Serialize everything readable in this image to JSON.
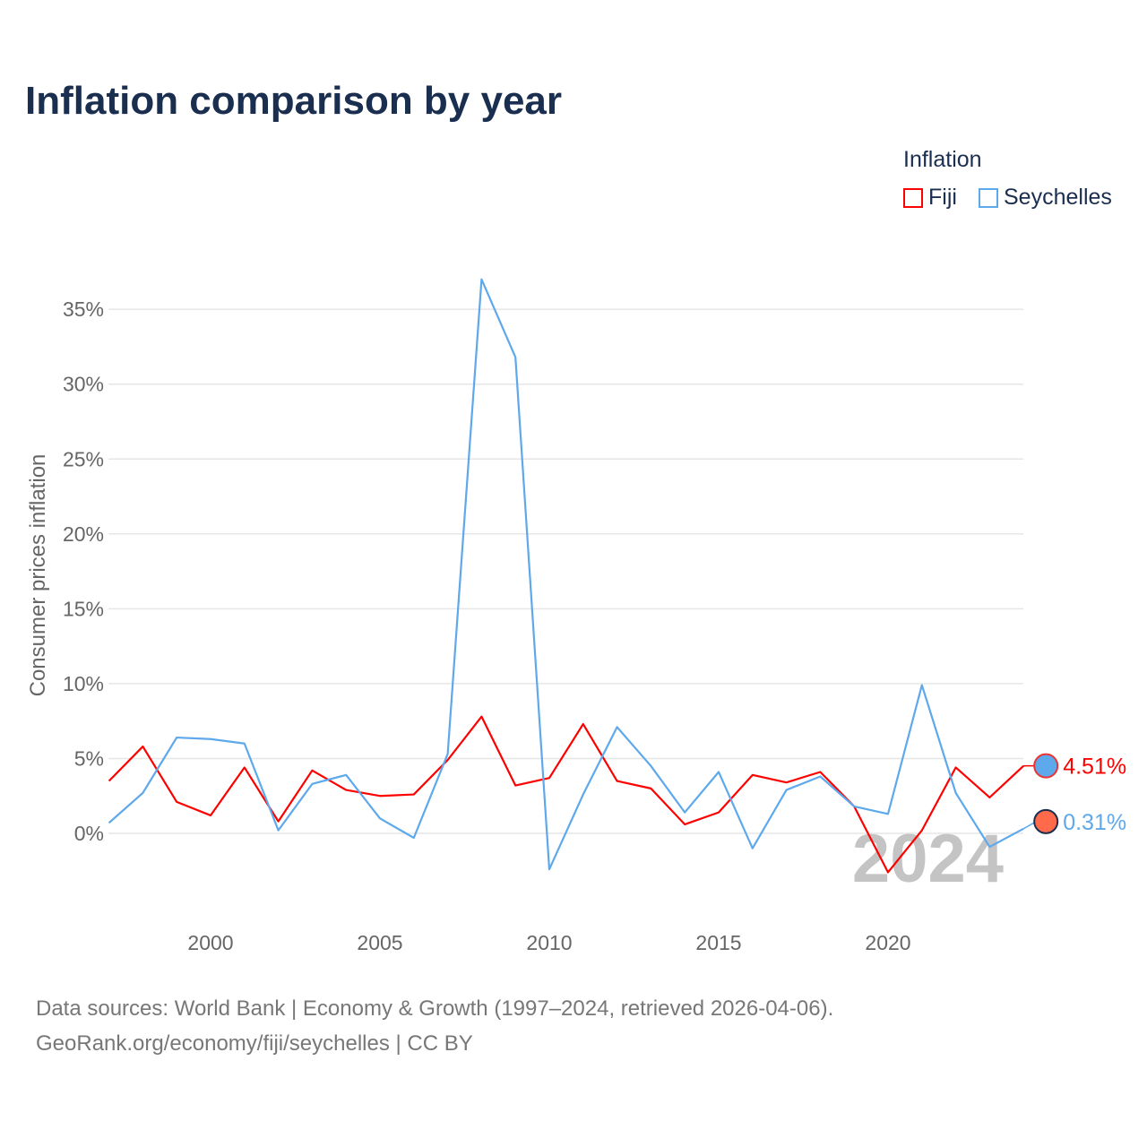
{
  "chart_data": {
    "type": "line",
    "title": "Inflation comparison by year",
    "ylabel": "Consumer prices inflation",
    "xlabel": "",
    "legend_title": "Inflation",
    "legend_position": "top-right",
    "x": [
      1997,
      1998,
      1999,
      2000,
      2001,
      2002,
      2003,
      2004,
      2005,
      2006,
      2007,
      2008,
      2009,
      2010,
      2011,
      2012,
      2013,
      2014,
      2015,
      2016,
      2017,
      2018,
      2019,
      2020,
      2021,
      2022,
      2023,
      2024
    ],
    "xlim": [
      1997,
      2024
    ],
    "ylim": [
      -4,
      38
    ],
    "xticks": [
      2000,
      2005,
      2010,
      2015,
      2020
    ],
    "xtick_labels": [
      "2000",
      "2005",
      "2010",
      "2015",
      "2020"
    ],
    "yticks": [
      0,
      5,
      10,
      15,
      20,
      25,
      30,
      35
    ],
    "ytick_labels": [
      "0%",
      "5%",
      "10%",
      "15%",
      "20%",
      "25%",
      "30%",
      "35%"
    ],
    "grid": true,
    "series": [
      {
        "name": "Fiji",
        "color": "#ff0000",
        "end_label": "4.51%",
        "values": [
          3.5,
          5.8,
          2.1,
          1.2,
          4.4,
          0.8,
          4.2,
          2.9,
          2.5,
          2.6,
          4.9,
          7.8,
          3.2,
          3.7,
          7.3,
          3.5,
          3.0,
          0.6,
          1.4,
          3.9,
          3.4,
          4.1,
          1.8,
          -2.6,
          0.2,
          4.4,
          2.4,
          4.51
        ]
      },
      {
        "name": "Seychelles",
        "color": "#5ea8ec",
        "end_label": "0.31%",
        "values": [
          0.7,
          2.7,
          6.4,
          6.3,
          6.0,
          0.2,
          3.3,
          3.9,
          1.0,
          -0.3,
          5.3,
          37.0,
          31.8,
          -2.4,
          2.6,
          7.1,
          4.5,
          1.4,
          4.1,
          -1.0,
          2.9,
          3.8,
          1.8,
          1.3,
          9.9,
          2.7,
          -0.9,
          0.31
        ]
      }
    ],
    "annotation": "2024"
  },
  "source": {
    "line1": "Data sources: World Bank | Economy & Growth (1997–2024, retrieved 2026-04-06).",
    "line2": "GeoRank.org/economy/fiji/seychelles | CC BY"
  }
}
